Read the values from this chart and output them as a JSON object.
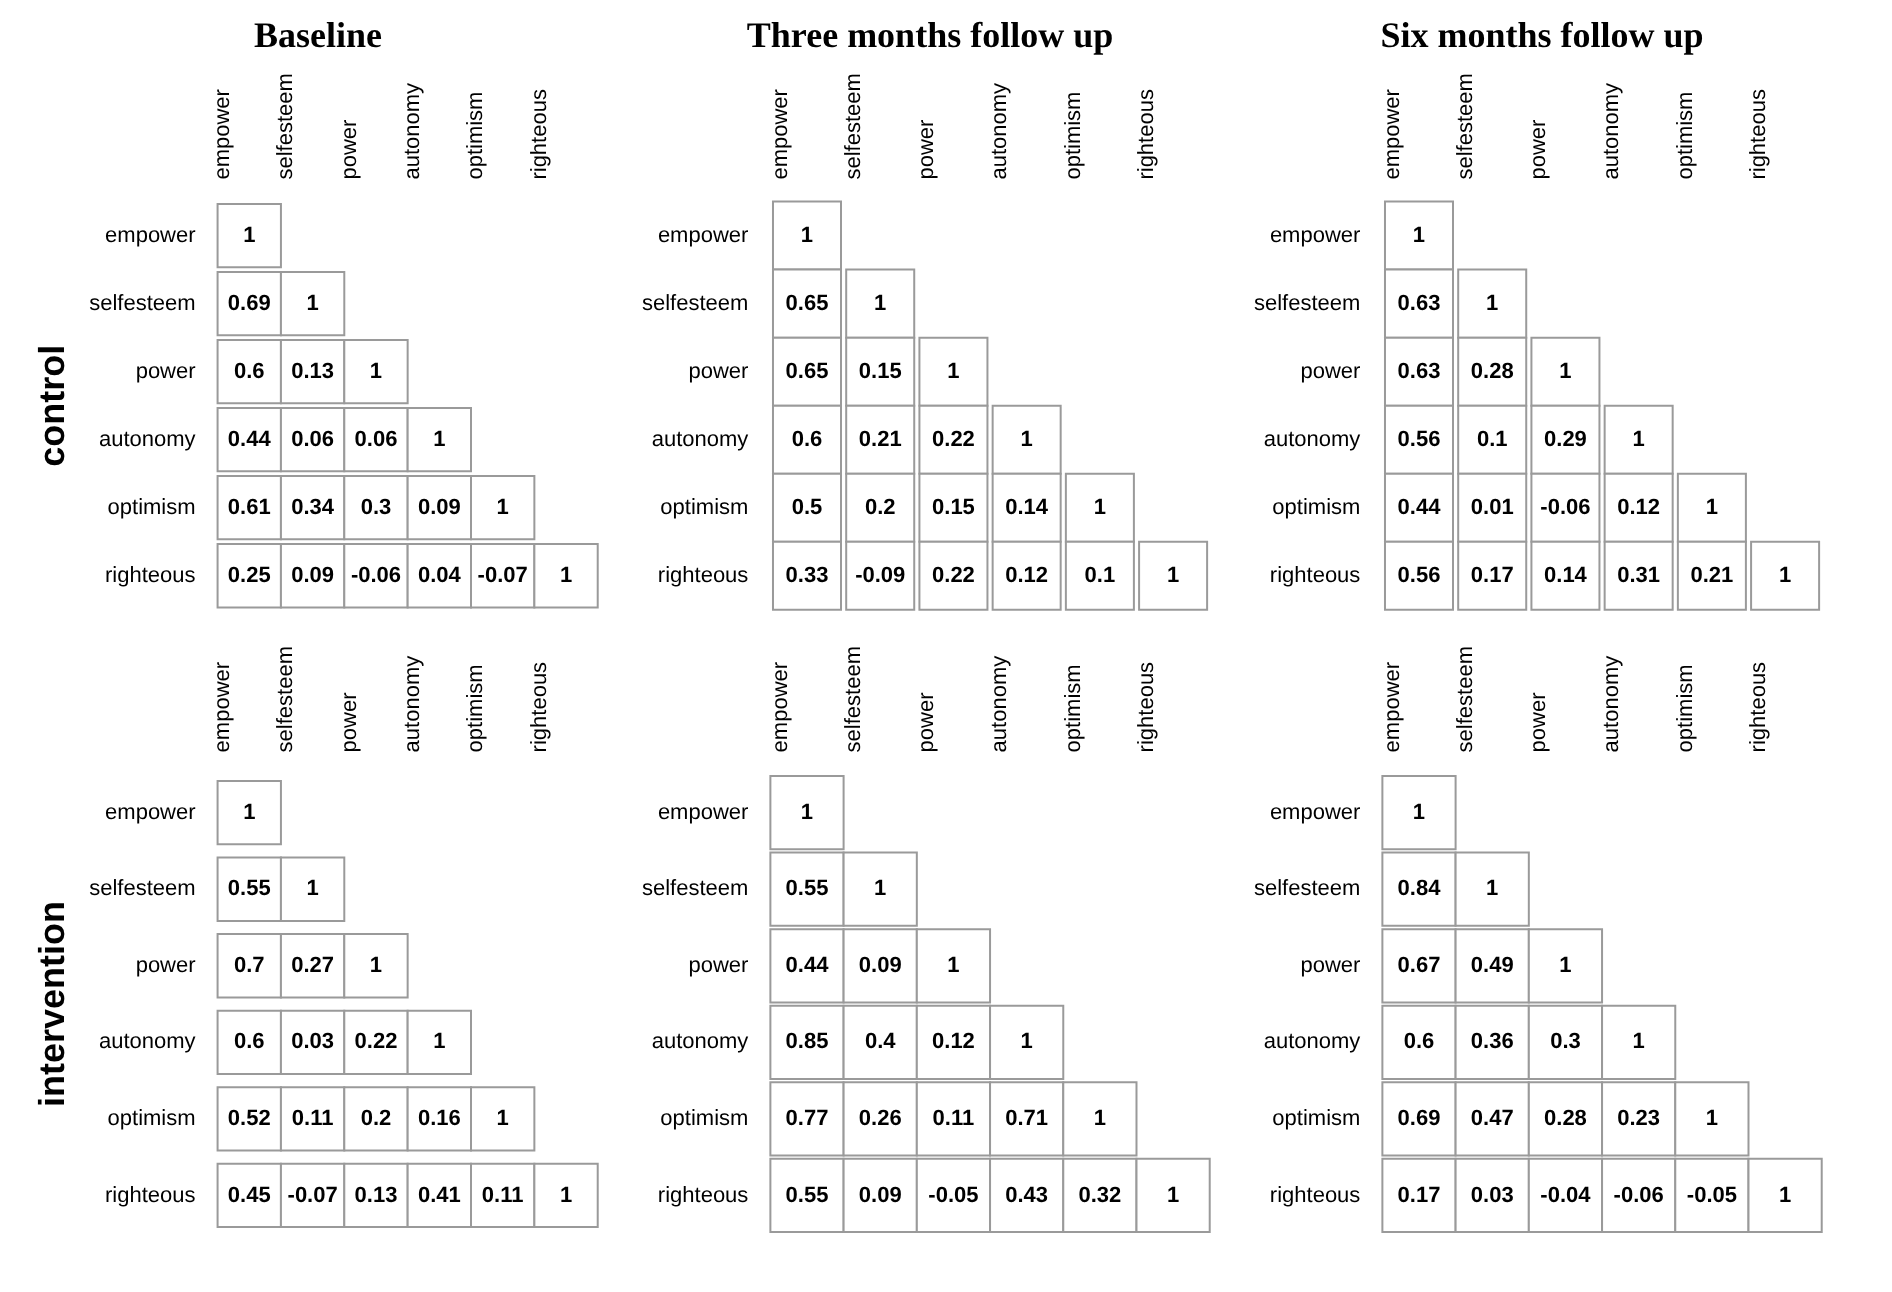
{
  "chart_data": [
    {
      "type": "heatmap",
      "title": "Baseline",
      "ylabel": "control",
      "categories": [
        "empower",
        "selfesteem",
        "power",
        "autonomy",
        "optimism",
        "righteous"
      ],
      "y_categories": [
        "empower",
        "selfesteem",
        "power",
        "autonomy",
        "optimism",
        "righteous"
      ],
      "data_labels": true,
      "cells": [
        [
          1,
          null,
          null,
          null,
          null,
          null
        ],
        [
          0.69,
          1,
          null,
          null,
          null,
          null
        ],
        [
          0.6,
          0.13,
          1,
          null,
          null,
          null
        ],
        [
          0.44,
          0.06,
          0.06,
          1,
          null,
          null
        ],
        [
          0.61,
          0.34,
          0.3,
          0.09,
          1,
          null
        ],
        [
          0.25,
          0.09,
          -0.06,
          0.04,
          -0.07,
          1
        ]
      ]
    },
    {
      "type": "heatmap",
      "title": "Three months follow up",
      "categories": [
        "empower",
        "selfesteem",
        "power",
        "autonomy",
        "optimism",
        "righteous"
      ],
      "y_categories": [
        "empower",
        "selfesteem",
        "power",
        "autonomy",
        "optimism",
        "righteous"
      ],
      "data_labels": true,
      "cells": [
        [
          1,
          null,
          null,
          null,
          null,
          null
        ],
        [
          0.65,
          1,
          null,
          null,
          null,
          null
        ],
        [
          0.65,
          0.15,
          1,
          null,
          null,
          null
        ],
        [
          0.6,
          0.21,
          0.22,
          1,
          null,
          null
        ],
        [
          0.5,
          0.2,
          0.15,
          0.14,
          1,
          null
        ],
        [
          0.33,
          -0.09,
          0.22,
          0.12,
          0.1,
          1
        ]
      ]
    },
    {
      "type": "heatmap",
      "title": "Six months follow up",
      "categories": [
        "empower",
        "selfesteem",
        "power",
        "autonomy",
        "optimism",
        "righteous"
      ],
      "y_categories": [
        "empower",
        "selfesteem",
        "power",
        "autonomy",
        "optimism",
        "righteous"
      ],
      "data_labels": true,
      "cells": [
        [
          1,
          null,
          null,
          null,
          null,
          null
        ],
        [
          0.63,
          1,
          null,
          null,
          null,
          null
        ],
        [
          0.63,
          0.28,
          1,
          null,
          null,
          null
        ],
        [
          0.56,
          0.1,
          0.29,
          1,
          null,
          null
        ],
        [
          0.44,
          0.01,
          -0.06,
          0.12,
          1,
          null
        ],
        [
          0.56,
          0.17,
          0.14,
          0.31,
          0.21,
          1
        ]
      ]
    },
    {
      "type": "heatmap",
      "ylabel": "intervention",
      "categories": [
        "empower",
        "selfesteem",
        "power",
        "autonomy",
        "optimism",
        "righteous"
      ],
      "y_categories": [
        "empower",
        "selfesteem",
        "power",
        "autonomy",
        "optimism",
        "righteous"
      ],
      "data_labels": true,
      "cells": [
        [
          1,
          null,
          null,
          null,
          null,
          null
        ],
        [
          0.55,
          1,
          null,
          null,
          null,
          null
        ],
        [
          0.7,
          0.27,
          1,
          null,
          null,
          null
        ],
        [
          0.6,
          0.03,
          0.22,
          1,
          null,
          null
        ],
        [
          0.52,
          0.11,
          0.2,
          0.16,
          1,
          null
        ],
        [
          0.45,
          -0.07,
          0.13,
          0.41,
          0.11,
          1
        ]
      ]
    },
    {
      "type": "heatmap",
      "categories": [
        "empower",
        "selfesteem",
        "power",
        "autonomy",
        "optimism",
        "righteous"
      ],
      "y_categories": [
        "empower",
        "selfesteem",
        "power",
        "autonomy",
        "optimism",
        "righteous"
      ],
      "data_labels": true,
      "cells": [
        [
          1,
          null,
          null,
          null,
          null,
          null
        ],
        [
          0.55,
          1,
          null,
          null,
          null,
          null
        ],
        [
          0.44,
          0.09,
          1,
          null,
          null,
          null
        ],
        [
          0.85,
          0.4,
          0.12,
          1,
          null,
          null
        ],
        [
          0.77,
          0.26,
          0.11,
          0.71,
          1,
          null
        ],
        [
          0.55,
          0.09,
          -0.05,
          0.43,
          0.32,
          1
        ]
      ]
    },
    {
      "type": "heatmap",
      "categories": [
        "empower",
        "selfesteem",
        "power",
        "autonomy",
        "optimism",
        "righteous"
      ],
      "y_categories": [
        "empower",
        "selfesteem",
        "power",
        "autonomy",
        "optimism",
        "righteous"
      ],
      "data_labels": true,
      "cells": [
        [
          1,
          null,
          null,
          null,
          null,
          null
        ],
        [
          0.84,
          1,
          null,
          null,
          null,
          null
        ],
        [
          0.67,
          0.49,
          1,
          null,
          null,
          null
        ],
        [
          0.6,
          0.36,
          0.3,
          1,
          null,
          null
        ],
        [
          0.69,
          0.47,
          0.28,
          0.23,
          1,
          null
        ],
        [
          0.17,
          0.03,
          -0.04,
          -0.06,
          -0.05,
          1
        ]
      ]
    }
  ]
}
